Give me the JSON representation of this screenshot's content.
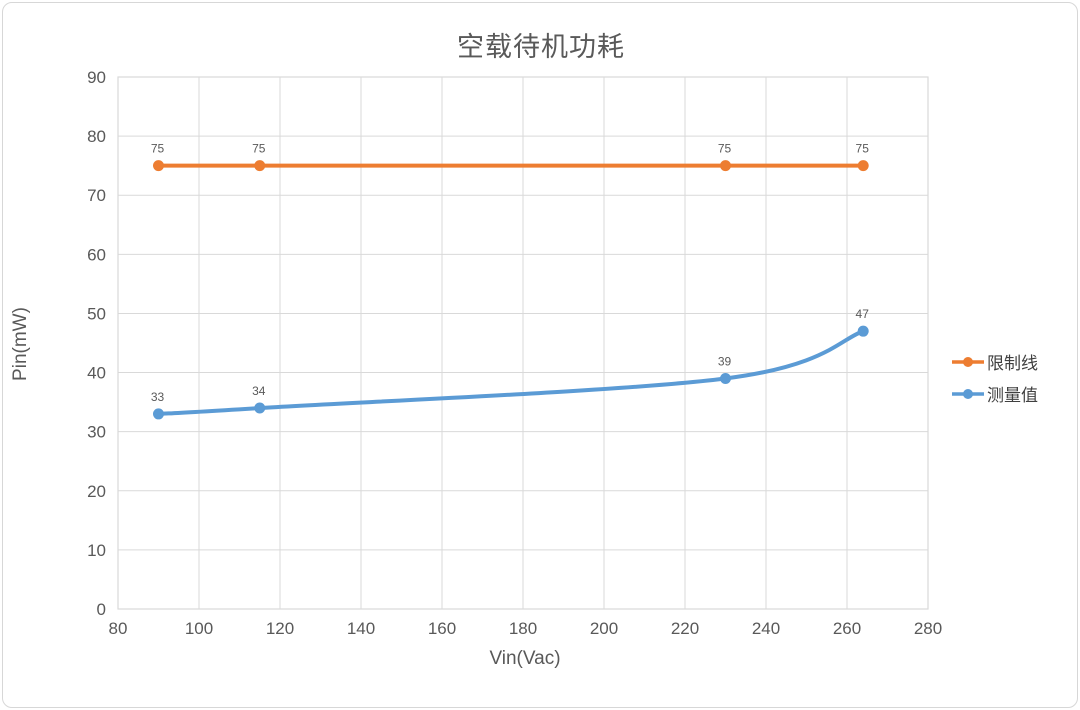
{
  "chart": {
    "title": "空载待机功耗",
    "x_axis": {
      "title": "Vin(Vac)",
      "tick_labels": [
        "80",
        "100",
        "120",
        "140",
        "160",
        "180",
        "200",
        "220",
        "240",
        "260",
        "280"
      ]
    },
    "y_axis": {
      "title": "Pin(mW)",
      "tick_labels": [
        "0",
        "10",
        "20",
        "30",
        "40",
        "50",
        "60",
        "70",
        "80",
        "90"
      ]
    },
    "legend": {
      "position": "right",
      "items": [
        {
          "label": "限制线"
        },
        {
          "label": "测量值"
        }
      ]
    },
    "colors": {
      "limit_series": "#ED7D31",
      "measured_series": "#5B9BD5",
      "grid": "#D9D9D9",
      "axis_text": "#595959",
      "data_label_text": "#595959",
      "frame_border": "#D7D7D7"
    }
  },
  "chart_data": {
    "type": "line",
    "title": "空载待机功耗",
    "xlabel": "Vin(Vac)",
    "ylabel": "Pin(mW)",
    "x": [
      90,
      115,
      230,
      264
    ],
    "series": [
      {
        "name": "限制线",
        "color": "#ED7D31",
        "values": [
          75,
          75,
          75,
          75
        ],
        "smooth": false,
        "data_labels": [
          "75",
          "75",
          "75",
          "75"
        ]
      },
      {
        "name": "测量值",
        "color": "#5B9BD5",
        "values": [
          33,
          34,
          39,
          47
        ],
        "smooth": true,
        "data_labels": [
          "33",
          "34",
          "39",
          "47"
        ]
      }
    ],
    "xlim": [
      80,
      280
    ],
    "xticks": [
      80,
      100,
      120,
      140,
      160,
      180,
      200,
      220,
      240,
      260,
      280
    ],
    "ylim": [
      0,
      90
    ],
    "yticks": [
      0,
      10,
      20,
      30,
      40,
      50,
      60,
      70,
      80,
      90
    ],
    "grid": true,
    "legend_position": "right",
    "data_labels_shown": true
  }
}
